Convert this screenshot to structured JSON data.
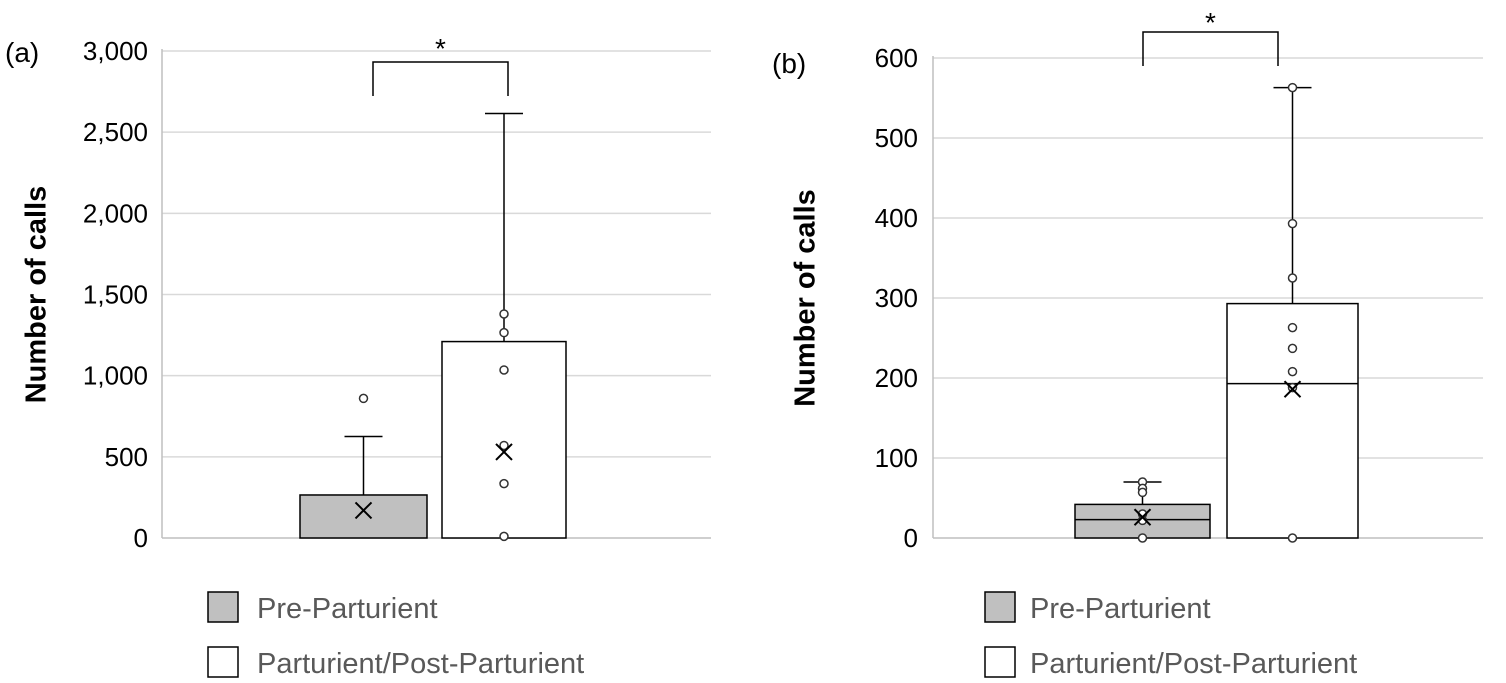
{
  "chart_data": [
    {
      "type": "box",
      "panel_label": "(a)",
      "ylabel": "Number of calls",
      "ylim": [
        0,
        3000
      ],
      "yticks": [
        0,
        500,
        1000,
        1500,
        2000,
        2500,
        3000
      ],
      "ytick_labels": [
        "0",
        "500",
        "1,000",
        "1,500",
        "2,000",
        "2,500",
        "3,000"
      ],
      "grid": true,
      "significance": "*",
      "legend": [
        {
          "label": "Pre-Parturient",
          "color": "#c0c0c0"
        },
        {
          "label": "Parturient/Post-Parturient",
          "color": "#ffffff"
        }
      ],
      "groups": [
        {
          "name": "Pre-Parturient",
          "color": "#c0c0c0",
          "min": 0,
          "q1": 0,
          "median": 0,
          "q3": 265,
          "max": 625,
          "mean": 170,
          "points": [
            860
          ]
        },
        {
          "name": "Parturient/Post-Parturient",
          "color": "#ffffff",
          "min": 0,
          "q1": 0,
          "median": 0,
          "q3": 1210,
          "max": 2615,
          "mean": 530,
          "points": [
            1380,
            1265,
            1035,
            570,
            335,
            10
          ]
        }
      ]
    },
    {
      "type": "box",
      "panel_label": "(b)",
      "ylabel": "Number of calls",
      "ylim": [
        0,
        600
      ],
      "yticks": [
        0,
        100,
        200,
        300,
        400,
        500,
        600
      ],
      "ytick_labels": [
        "0",
        "100",
        "200",
        "300",
        "400",
        "500",
        "600"
      ],
      "grid": true,
      "significance": "*",
      "legend": [
        {
          "label": "Pre-Parturient",
          "color": "#c0c0c0"
        },
        {
          "label": "Parturient/Post-Parturient",
          "color": "#ffffff"
        }
      ],
      "groups": [
        {
          "name": "Pre-Parturient",
          "color": "#c0c0c0",
          "min": 0,
          "q1": 0,
          "median": 23,
          "q3": 42,
          "max": 70,
          "mean": 26,
          "points": [
            70,
            62,
            57,
            30,
            22,
            0
          ]
        },
        {
          "name": "Parturient/Post-Parturient",
          "color": "#ffffff",
          "min": 0,
          "q1": 0,
          "median": 193,
          "q3": 293,
          "max": 563,
          "mean": 186,
          "points": [
            563,
            393,
            325,
            263,
            237,
            208,
            188,
            0
          ]
        }
      ]
    }
  ]
}
